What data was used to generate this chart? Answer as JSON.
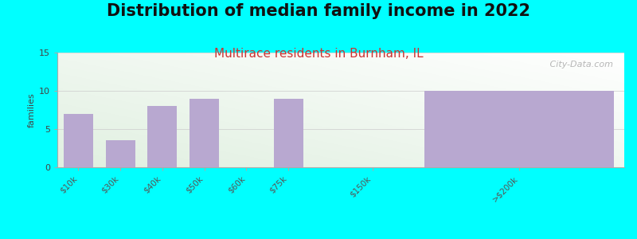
{
  "title": "Distribution of median family income in 2022",
  "subtitle": "Multirace residents in Burnham, IL",
  "ylabel": "families",
  "background_color": "#00FFFF",
  "bar_color": "#b8a8d0",
  "categories": [
    "$10k",
    "$30k",
    "$40k",
    "$50k",
    "$60k",
    "$75k",
    "$150k",
    ">$200k"
  ],
  "heights": [
    7,
    3.5,
    8,
    9,
    0,
    9,
    0,
    10
  ],
  "positions": [
    0,
    1,
    2,
    3,
    4,
    5,
    7,
    10.5
  ],
  "widths": [
    0.7,
    0.7,
    0.7,
    0.7,
    0.7,
    0.7,
    0.7,
    4.5
  ],
  "xlim": [
    -0.5,
    13.0
  ],
  "ylim": [
    0,
    15
  ],
  "yticks": [
    0,
    5,
    10,
    15
  ],
  "title_fontsize": 15,
  "subtitle_fontsize": 11,
  "watermark": " City-Data.com"
}
